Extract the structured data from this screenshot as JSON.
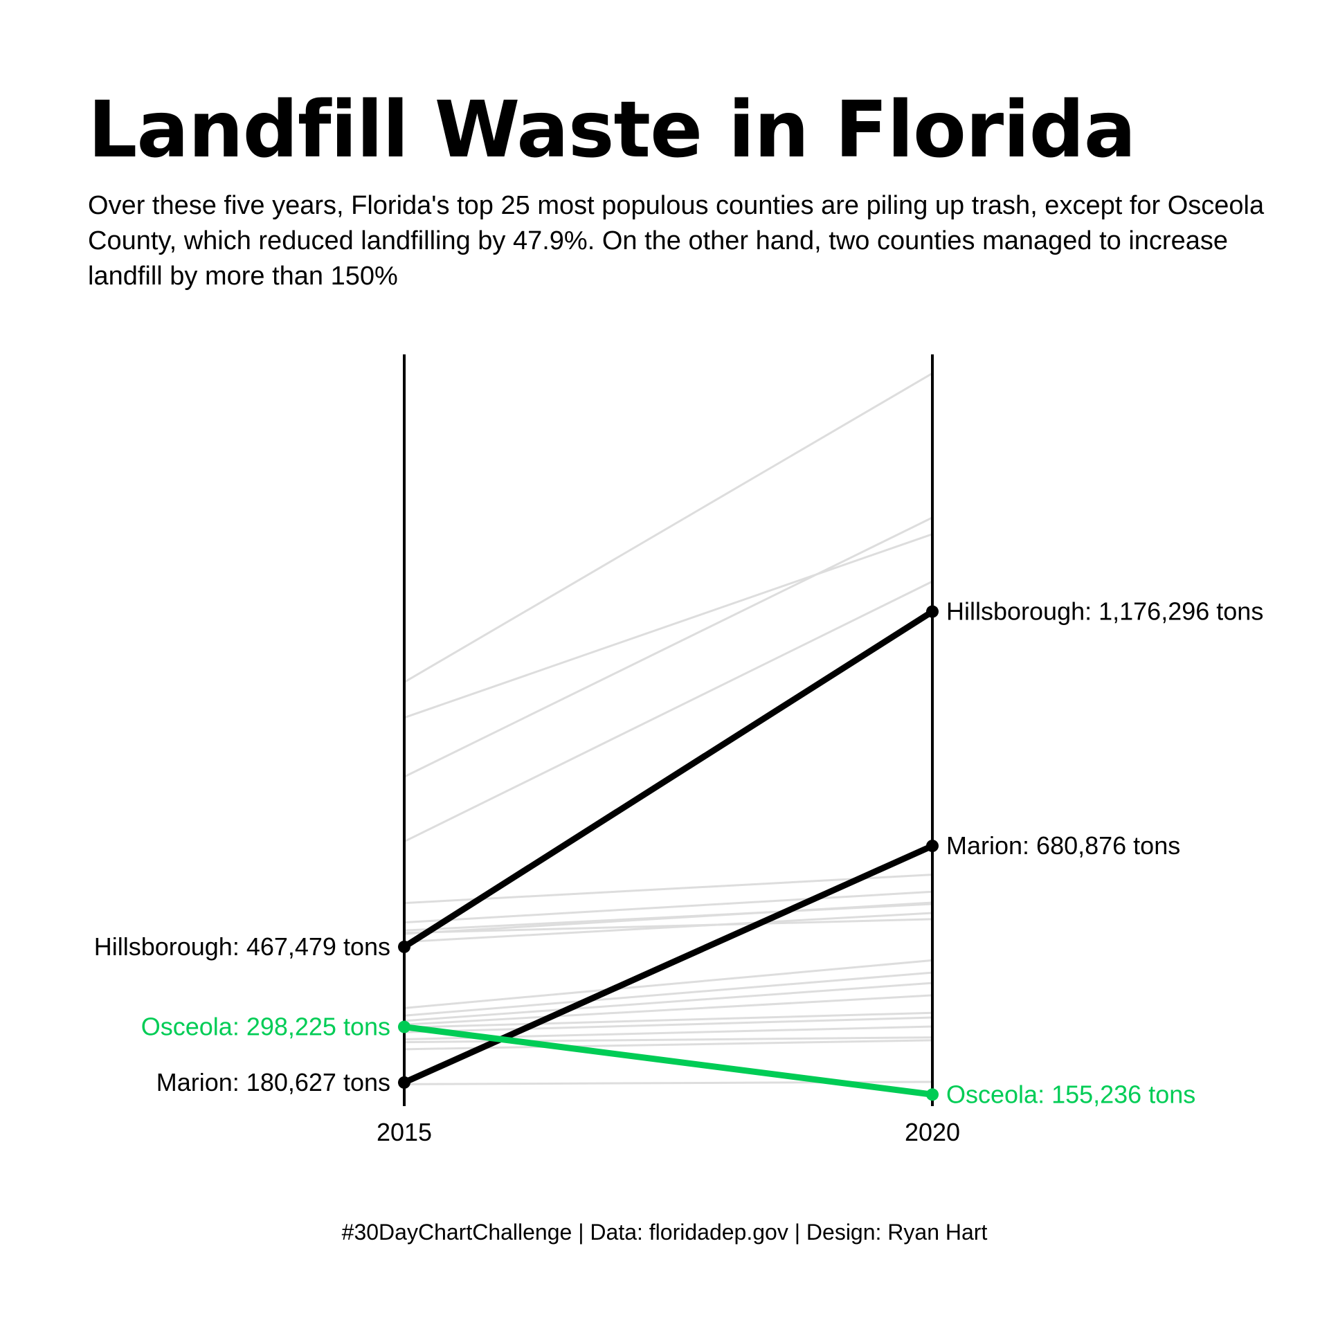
{
  "title": "Landfill Waste in Florida",
  "subtitle": "Over these five years, Florida's top 25 most populous counties are piling up trash, except for Osceola County, which reduced landfilling by 47.9%. On the other hand, two counties managed to increase landfill by more than 150%",
  "caption": "#30DayChartChallenge | Data: floridadep.gov | Design: Ryan Hart",
  "colors": {
    "highlight": "#000000",
    "osceola": "#00cc55",
    "background_lines": "#dddddd",
    "axis": "#000000"
  },
  "chart_data": {
    "type": "line",
    "subtype": "slope",
    "x": [
      "2015",
      "2020"
    ],
    "ylim": [
      160000,
      1720000
    ],
    "unit": "tons",
    "highlighted_series": [
      {
        "name": "Hillsborough",
        "values": [
          467479,
          1176296
        ],
        "label_2015": "Hillsborough: 467,479 tons",
        "label_2020": "Hillsborough: 1,176,296 tons",
        "color": "#000000"
      },
      {
        "name": "Marion",
        "values": [
          180627,
          680876
        ],
        "label_2015": "Marion: 180,627 tons",
        "label_2020": "Marion: 680,876 tons",
        "color": "#000000"
      },
      {
        "name": "Osceola",
        "values": [
          298225,
          155236
        ],
        "label_2015": "Osceola: 298,225 tons",
        "label_2020": "Osceola: 155,236 tons",
        "color": "#00cc55"
      }
    ],
    "background_series": [
      [
        1027000,
        1680000
      ],
      [
        952000,
        1340000
      ],
      [
        827000,
        1375000
      ],
      [
        690000,
        1240000
      ],
      [
        560000,
        620000
      ],
      [
        519000,
        584000
      ],
      [
        502000,
        558000
      ],
      [
        497000,
        526000
      ],
      [
        495000,
        561000
      ],
      [
        478000,
        539000
      ],
      [
        338000,
        439000
      ],
      [
        322000,
        413000
      ],
      [
        311000,
        391000
      ],
      [
        303000,
        365000
      ],
      [
        297000,
        328000
      ],
      [
        287000,
        318000
      ],
      [
        272000,
        299000
      ],
      [
        266000,
        276000
      ],
      [
        251000,
        270000
      ],
      [
        177000,
        182000
      ]
    ]
  }
}
